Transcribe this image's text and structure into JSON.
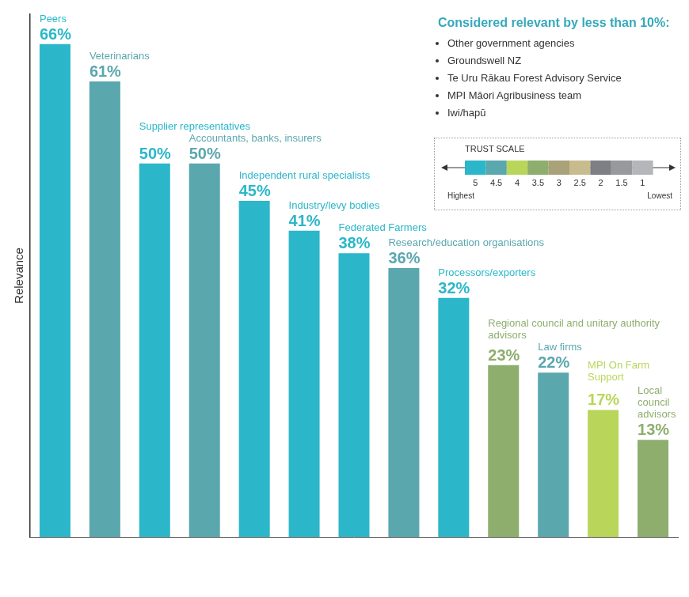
{
  "chart_data": {
    "type": "bar",
    "y_label": "Relevance",
    "categories": [
      "Peers",
      "Veterinarians",
      "Supplier representatives",
      "Accountants, banks, insurers",
      "Independent rural specialists",
      "Industry/levy bodies",
      "Federated Farmers",
      "Research/education organisations",
      "Processors/exporters",
      "Regional council and unitary authority advisors",
      "Law firms",
      "MPI On Farm Support",
      "Local council advisors"
    ],
    "values": [
      66,
      61,
      50,
      50,
      45,
      41,
      38,
      36,
      32,
      23,
      22,
      17,
      13
    ],
    "value_labels": [
      "66%",
      "61%",
      "50%",
      "50%",
      "45%",
      "41%",
      "38%",
      "36%",
      "32%",
      "23%",
      "22%",
      "17%",
      "13%"
    ],
    "trust": [
      5,
      4.5,
      5,
      4.5,
      5,
      5,
      5,
      4.5,
      5,
      3.5,
      4.5,
      4,
      3.5
    ],
    "trust_scale": {
      "title": "TRUST SCALE",
      "values": [
        5,
        4.5,
        4,
        3.5,
        3,
        2.5,
        2,
        1.5,
        1
      ],
      "colors": [
        "#2bb7c9",
        "#5aa7ae",
        "#b9d65a",
        "#8eae6e",
        "#a9a17a",
        "#c8bc8f",
        "#7c7f83",
        "#98999c",
        "#b4b6b9"
      ],
      "high_label": "Highest",
      "low_label": "Lowest"
    },
    "note": {
      "title": "Considered relevant by less than 10%:",
      "items": [
        "Other government agencies",
        "Groundswell NZ",
        "Te Uru Rākau Forest Advisory Service",
        "MPI Māori Agribusiness team",
        "Iwi/hapū"
      ]
    },
    "ylim": [
      0,
      70
    ],
    "grid": false,
    "tick_labels": false,
    "data_labels": true
  }
}
